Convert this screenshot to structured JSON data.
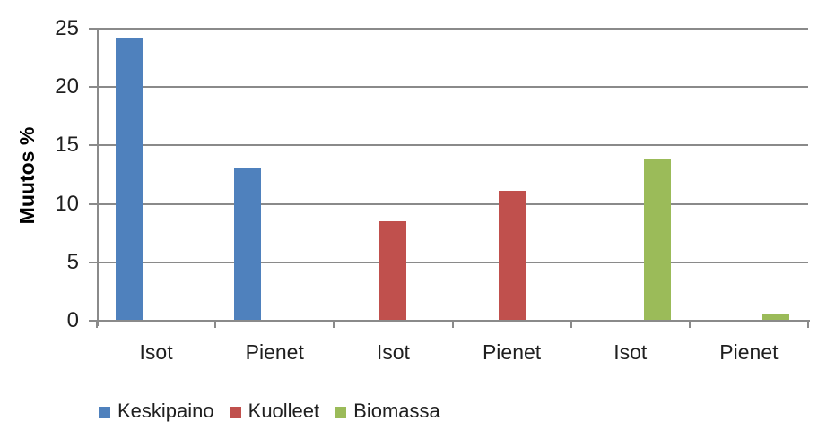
{
  "chart_data": {
    "type": "bar",
    "categories": [
      "Isot",
      "Pienet",
      "Isot",
      "Pienet",
      "Isot",
      "Pienet"
    ],
    "series": [
      {
        "name": "Keskipaino",
        "color": "#4F81BD",
        "values": [
          24.2,
          13.1,
          null,
          null,
          null,
          null
        ]
      },
      {
        "name": "Kuolleet",
        "color": "#C0504D",
        "values": [
          null,
          null,
          8.5,
          11.1,
          null,
          null
        ]
      },
      {
        "name": "Biomassa",
        "color": "#9BBB59",
        "values": [
          null,
          null,
          null,
          null,
          13.9,
          0.6
        ]
      }
    ],
    "ylabel": "Muutos %",
    "ylim": [
      0,
      25
    ],
    "yticks": [
      0,
      5,
      10,
      15,
      20,
      25
    ],
    "grid": true,
    "legend_position": "bottom",
    "colors": {
      "gridline": "#8A8A8A",
      "axis": "#8A8A8A",
      "text": "#1F1F1F",
      "background": "#FFFFFF"
    }
  }
}
